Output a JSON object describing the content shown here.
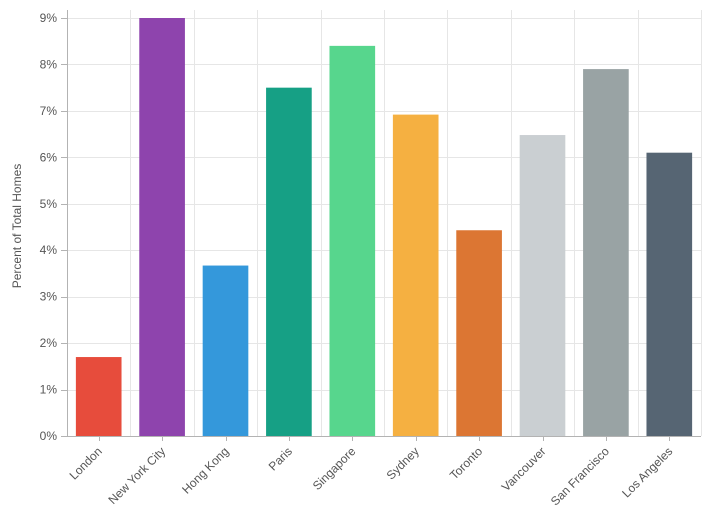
{
  "chart_data": {
    "type": "bar",
    "title": "",
    "xlabel": "",
    "ylabel": "Percent of Total Homes",
    "ylim": [
      0,
      9
    ],
    "yticks": [
      0,
      1,
      2,
      3,
      4,
      5,
      6,
      7,
      8,
      9
    ],
    "ytick_labels": [
      "0%",
      "1%",
      "2%",
      "3%",
      "4%",
      "5%",
      "6%",
      "7%",
      "8%",
      "9%"
    ],
    "grid": true,
    "legend": "none",
    "categories": [
      "London",
      "New York City",
      "Hong Kong",
      "Paris",
      "Singapore",
      "Sydney",
      "Toronto",
      "Vancouver",
      "San Francisco",
      "Los Angeles"
    ],
    "values": [
      1.7,
      9.0,
      3.67,
      7.5,
      8.4,
      6.92,
      4.43,
      6.48,
      7.9,
      6.1
    ],
    "colors": [
      "#e74c3c",
      "#8e44ad",
      "#3498db",
      "#16a085",
      "#57d68d",
      "#f5b041",
      "#dc7633",
      "#cacfd2",
      "#99a3a4",
      "#566573"
    ]
  }
}
